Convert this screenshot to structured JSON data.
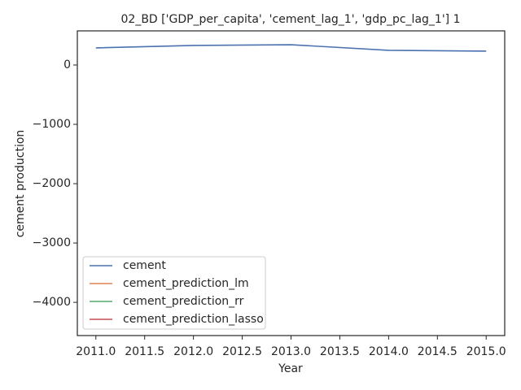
{
  "chart_data": {
    "type": "line",
    "title": "02_BD ['GDP_per_capita', 'cement_lag_1', 'gdp_pc_lag_1'] 1",
    "xlabel": "Year",
    "ylabel": "cement production",
    "x": [
      2011,
      2012,
      2013,
      2014,
      2015
    ],
    "series": [
      {
        "name": "cement",
        "color": "#4c72b0",
        "values": [
          288,
          329,
          342,
          247,
          233
        ]
      },
      {
        "name": "cement_prediction_lm",
        "color": "#dd8452",
        "values": [
          null,
          null,
          null,
          null,
          null
        ]
      },
      {
        "name": "cement_prediction_rr",
        "color": "#55a868",
        "values": [
          null,
          null,
          null,
          null,
          null
        ]
      },
      {
        "name": "cement_prediction_lasso",
        "color": "#c44e52",
        "values": [
          null,
          null,
          null,
          null,
          null
        ]
      }
    ],
    "xlim": [
      2010.81,
      2015.19
    ],
    "ylim": [
      -4560,
      575
    ],
    "xticks": [
      {
        "value": 2011,
        "label": "2011.0"
      },
      {
        "value": 2011.5,
        "label": "2011.5"
      },
      {
        "value": 2012,
        "label": "2012.0"
      },
      {
        "value": 2012.5,
        "label": "2012.5"
      },
      {
        "value": 2013,
        "label": "2013.0"
      },
      {
        "value": 2013.5,
        "label": "2013.5"
      },
      {
        "value": 2014,
        "label": "2014.0"
      },
      {
        "value": 2014.5,
        "label": "2014.5"
      },
      {
        "value": 2015,
        "label": "2015.0"
      }
    ],
    "yticks": [
      {
        "value": -4000,
        "label": "−4000"
      },
      {
        "value": -3000,
        "label": "−3000"
      },
      {
        "value": -2000,
        "label": "−2000"
      },
      {
        "value": -1000,
        "label": "−1000"
      },
      0
    ],
    "grid": false,
    "legend": "lower left"
  }
}
